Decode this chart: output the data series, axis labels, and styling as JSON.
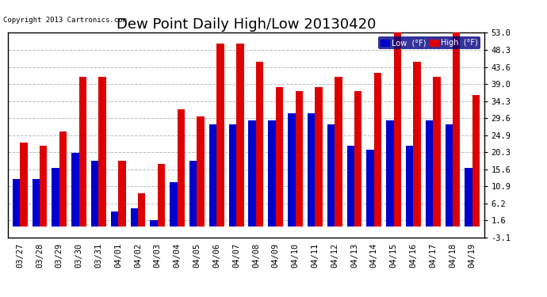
{
  "title": "Dew Point Daily High/Low 20130420",
  "copyright": "Copyright 2013 Cartronics.com",
  "dates": [
    "03/27",
    "03/28",
    "03/29",
    "03/30",
    "03/31",
    "04/01",
    "04/02",
    "04/03",
    "04/04",
    "04/05",
    "04/06",
    "04/07",
    "04/08",
    "04/09",
    "04/10",
    "04/11",
    "04/12",
    "04/13",
    "04/14",
    "04/15",
    "04/16",
    "04/17",
    "04/18",
    "04/19"
  ],
  "low_values": [
    13.0,
    13.0,
    16.0,
    20.0,
    18.0,
    4.0,
    5.0,
    1.6,
    12.0,
    18.0,
    28.0,
    28.0,
    29.0,
    29.0,
    31.0,
    31.0,
    28.0,
    22.0,
    21.0,
    29.0,
    22.0,
    29.0,
    28.0,
    16.0
  ],
  "high_values": [
    23.0,
    22.0,
    26.0,
    41.0,
    41.0,
    18.0,
    9.0,
    17.0,
    32.0,
    30.0,
    50.0,
    50.0,
    45.0,
    38.0,
    37.0,
    38.0,
    41.0,
    37.0,
    42.0,
    55.0,
    45.0,
    41.0,
    54.0,
    36.0
  ],
  "low_color": "#0000cc",
  "high_color": "#dd0000",
  "bar_width": 0.38,
  "ylim_min": -3.1,
  "ylim_max": 53.0,
  "yticks": [
    -3.1,
    1.6,
    6.2,
    10.9,
    15.6,
    20.3,
    24.9,
    29.6,
    34.3,
    39.0,
    43.6,
    48.3,
    53.0
  ],
  "grid_color": "#bbbbbb",
  "bg_color": "#ffffff",
  "plot_bg_color": "#ffffff",
  "title_fontsize": 13,
  "tick_fontsize": 7.5,
  "legend_low_label": "Low  (°F)",
  "legend_high_label": "High  (°F)",
  "border_color": "#000000"
}
